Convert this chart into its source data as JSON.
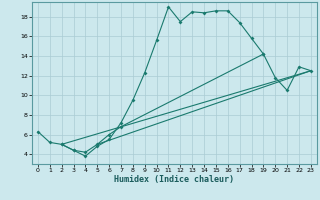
{
  "title": "",
  "xlabel": "Humidex (Indice chaleur)",
  "background_color": "#cce8ed",
  "grid_color": "#b0d8e0",
  "line_color": "#1a7a6e",
  "xlim": [
    -0.5,
    23.5
  ],
  "ylim": [
    3.0,
    19.5
  ],
  "xticks": [
    0,
    1,
    2,
    3,
    4,
    5,
    6,
    7,
    8,
    9,
    10,
    11,
    12,
    13,
    14,
    15,
    16,
    17,
    18,
    19,
    20,
    21,
    22,
    23
  ],
  "yticks": [
    4,
    6,
    8,
    10,
    12,
    14,
    16,
    18
  ],
  "curve1_x": [
    0,
    1,
    2,
    3,
    4,
    5,
    6,
    7,
    8,
    9,
    10,
    11,
    12,
    13,
    14,
    15,
    16,
    17,
    18,
    19
  ],
  "curve1_y": [
    6.3,
    5.2,
    5.0,
    4.4,
    3.8,
    4.8,
    5.5,
    7.2,
    9.5,
    12.3,
    15.6,
    19.0,
    17.5,
    18.5,
    18.4,
    18.6,
    18.6,
    17.4,
    15.8,
    14.2
  ],
  "curve2_x": [
    2,
    3,
    4,
    5,
    6,
    7,
    19,
    20,
    21,
    22,
    23
  ],
  "curve2_y": [
    5.0,
    4.4,
    4.2,
    5.0,
    6.0,
    6.8,
    14.2,
    11.8,
    10.5,
    12.9,
    12.5
  ],
  "line1_x": [
    2,
    23
  ],
  "line1_y": [
    5.0,
    12.5
  ],
  "line2_x": [
    5,
    23
  ],
  "line2_y": [
    5.0,
    12.5
  ]
}
